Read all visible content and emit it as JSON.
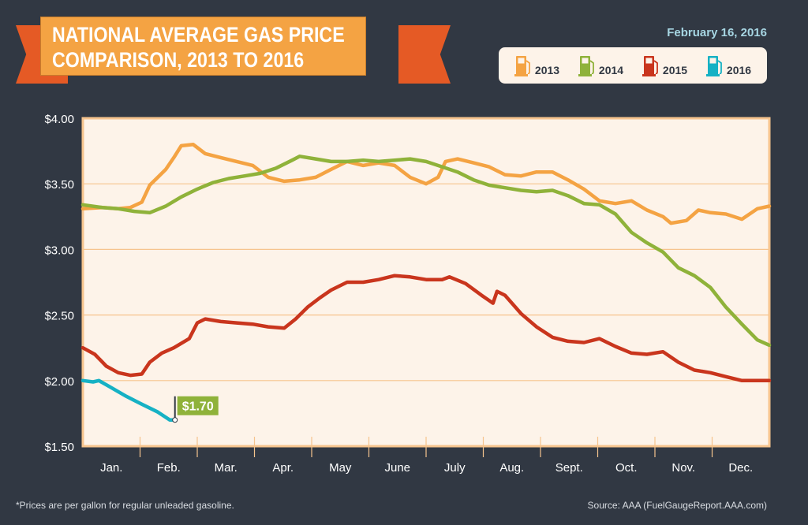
{
  "title_line1": "NATIONAL AVERAGE GAS PRICE",
  "title_line2": "COMPARISON, 2013 TO 2016",
  "date": "February 16, 2016",
  "footnote": "*Prices are per gallon for regular unleaded gasoline.",
  "source": "Source: AAA (FuelGaugeReport.AAA.com)",
  "chart_data": {
    "type": "line",
    "xlabel": "",
    "ylabel": "",
    "ylim": [
      1.5,
      4.0
    ],
    "xlim": [
      0,
      12
    ],
    "yticks": [
      "$4.00",
      "$3.50",
      "$3.00",
      "$2.50",
      "$2.00",
      "$1.50"
    ],
    "ytick_values": [
      4.0,
      3.5,
      3.0,
      2.5,
      2.0,
      1.5
    ],
    "categories": [
      "Jan.",
      "Feb.",
      "Mar.",
      "Apr.",
      "May",
      "June",
      "July",
      "Aug.",
      "Sept.",
      "Oct.",
      "Nov.",
      "Dec."
    ],
    "grid": true,
    "legend": "top-right",
    "annotation": {
      "label": "$1.70",
      "series": "2016",
      "x": 1.61,
      "y": 1.7,
      "color": "#8fb23a"
    },
    "series": [
      {
        "name": "2013",
        "color": "#f4a343",
        "points": [
          [
            0,
            3.31
          ],
          [
            0.34,
            3.32
          ],
          [
            0.62,
            3.31
          ],
          [
            0.83,
            3.32
          ],
          [
            1.03,
            3.36
          ],
          [
            1.17,
            3.49
          ],
          [
            1.31,
            3.55
          ],
          [
            1.45,
            3.61
          ],
          [
            1.59,
            3.7
          ],
          [
            1.72,
            3.79
          ],
          [
            1.93,
            3.8
          ],
          [
            2.14,
            3.73
          ],
          [
            2.41,
            3.7
          ],
          [
            2.69,
            3.67
          ],
          [
            2.97,
            3.64
          ],
          [
            3.24,
            3.55
          ],
          [
            3.52,
            3.52
          ],
          [
            3.79,
            3.53
          ],
          [
            4.07,
            3.55
          ],
          [
            4.34,
            3.61
          ],
          [
            4.62,
            3.67
          ],
          [
            4.9,
            3.64
          ],
          [
            5.17,
            3.66
          ],
          [
            5.45,
            3.64
          ],
          [
            5.72,
            3.55
          ],
          [
            6.0,
            3.5
          ],
          [
            6.21,
            3.55
          ],
          [
            6.34,
            3.67
          ],
          [
            6.55,
            3.69
          ],
          [
            6.83,
            3.66
          ],
          [
            7.1,
            3.63
          ],
          [
            7.38,
            3.57
          ],
          [
            7.66,
            3.56
          ],
          [
            7.93,
            3.59
          ],
          [
            8.21,
            3.59
          ],
          [
            8.48,
            3.53
          ],
          [
            8.76,
            3.46
          ],
          [
            9.03,
            3.37
          ],
          [
            9.31,
            3.35
          ],
          [
            9.59,
            3.37
          ],
          [
            9.86,
            3.3
          ],
          [
            10.14,
            3.25
          ],
          [
            10.28,
            3.2
          ],
          [
            10.55,
            3.22
          ],
          [
            10.76,
            3.3
          ],
          [
            10.97,
            3.28
          ],
          [
            11.24,
            3.27
          ],
          [
            11.52,
            3.23
          ],
          [
            11.79,
            3.31
          ],
          [
            12,
            3.33
          ]
        ]
      },
      {
        "name": "2014",
        "color": "#8fb23a",
        "points": [
          [
            0,
            3.34
          ],
          [
            0.34,
            3.32
          ],
          [
            0.62,
            3.31
          ],
          [
            0.9,
            3.29
          ],
          [
            1.17,
            3.28
          ],
          [
            1.45,
            3.33
          ],
          [
            1.72,
            3.4
          ],
          [
            2.0,
            3.46
          ],
          [
            2.28,
            3.51
          ],
          [
            2.55,
            3.54
          ],
          [
            2.83,
            3.56
          ],
          [
            3.1,
            3.58
          ],
          [
            3.38,
            3.62
          ],
          [
            3.66,
            3.68
          ],
          [
            3.79,
            3.71
          ],
          [
            4.07,
            3.69
          ],
          [
            4.34,
            3.67
          ],
          [
            4.62,
            3.67
          ],
          [
            4.9,
            3.68
          ],
          [
            5.17,
            3.67
          ],
          [
            5.45,
            3.68
          ],
          [
            5.72,
            3.69
          ],
          [
            6.0,
            3.67
          ],
          [
            6.28,
            3.63
          ],
          [
            6.55,
            3.59
          ],
          [
            6.83,
            3.53
          ],
          [
            7.1,
            3.49
          ],
          [
            7.38,
            3.47
          ],
          [
            7.66,
            3.45
          ],
          [
            7.93,
            3.44
          ],
          [
            8.21,
            3.45
          ],
          [
            8.48,
            3.41
          ],
          [
            8.76,
            3.35
          ],
          [
            9.03,
            3.34
          ],
          [
            9.31,
            3.27
          ],
          [
            9.59,
            3.13
          ],
          [
            9.86,
            3.05
          ],
          [
            10.14,
            2.98
          ],
          [
            10.41,
            2.86
          ],
          [
            10.69,
            2.8
          ],
          [
            10.97,
            2.71
          ],
          [
            11.24,
            2.56
          ],
          [
            11.52,
            2.43
          ],
          [
            11.79,
            2.31
          ],
          [
            12,
            2.27
          ]
        ]
      },
      {
        "name": "2015",
        "color": "#c9351d",
        "points": [
          [
            0,
            2.25
          ],
          [
            0.21,
            2.2
          ],
          [
            0.41,
            2.11
          ],
          [
            0.62,
            2.06
          ],
          [
            0.83,
            2.04
          ],
          [
            1.03,
            2.05
          ],
          [
            1.17,
            2.14
          ],
          [
            1.38,
            2.21
          ],
          [
            1.59,
            2.25
          ],
          [
            1.86,
            2.32
          ],
          [
            2.0,
            2.44
          ],
          [
            2.14,
            2.47
          ],
          [
            2.41,
            2.45
          ],
          [
            2.69,
            2.44
          ],
          [
            2.97,
            2.43
          ],
          [
            3.24,
            2.41
          ],
          [
            3.52,
            2.4
          ],
          [
            3.72,
            2.47
          ],
          [
            3.93,
            2.56
          ],
          [
            4.14,
            2.63
          ],
          [
            4.34,
            2.69
          ],
          [
            4.62,
            2.75
          ],
          [
            4.9,
            2.75
          ],
          [
            5.17,
            2.77
          ],
          [
            5.45,
            2.8
          ],
          [
            5.72,
            2.79
          ],
          [
            6.0,
            2.77
          ],
          [
            6.28,
            2.77
          ],
          [
            6.41,
            2.79
          ],
          [
            6.69,
            2.74
          ],
          [
            6.97,
            2.65
          ],
          [
            7.17,
            2.59
          ],
          [
            7.24,
            2.68
          ],
          [
            7.38,
            2.65
          ],
          [
            7.66,
            2.51
          ],
          [
            7.93,
            2.41
          ],
          [
            8.21,
            2.33
          ],
          [
            8.48,
            2.3
          ],
          [
            8.76,
            2.29
          ],
          [
            9.03,
            2.32
          ],
          [
            9.31,
            2.26
          ],
          [
            9.59,
            2.21
          ],
          [
            9.86,
            2.2
          ],
          [
            10.14,
            2.22
          ],
          [
            10.41,
            2.14
          ],
          [
            10.69,
            2.08
          ],
          [
            10.97,
            2.06
          ],
          [
            11.24,
            2.03
          ],
          [
            11.52,
            2.0
          ],
          [
            11.79,
            2.0
          ],
          [
            12,
            2.0
          ]
        ]
      },
      {
        "name": "2016",
        "color": "#16b1c4",
        "points": [
          [
            0,
            2.0
          ],
          [
            0.18,
            1.99
          ],
          [
            0.28,
            2.0
          ],
          [
            0.48,
            1.95
          ],
          [
            0.76,
            1.88
          ],
          [
            1.03,
            1.82
          ],
          [
            1.31,
            1.76
          ],
          [
            1.52,
            1.7
          ],
          [
            1.61,
            1.7
          ]
        ]
      }
    ]
  }
}
